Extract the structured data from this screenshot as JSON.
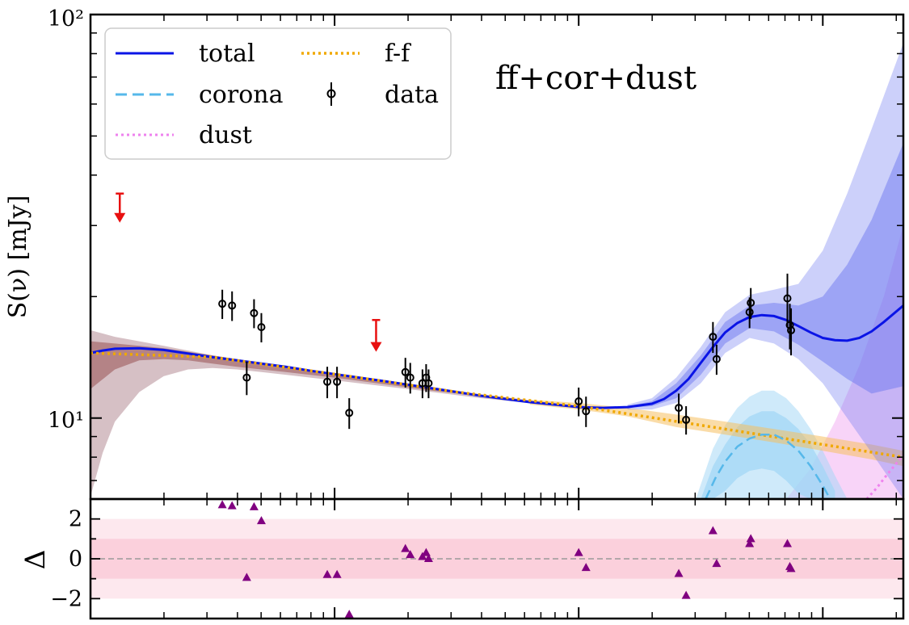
{
  "chart_data": [
    {
      "panel": "main",
      "type": "scatter",
      "title": "",
      "annotation": "ff+cor+dust",
      "xlabel": "",
      "ylabel": "S(ν) [mJy]",
      "yscale": "log",
      "xscale": "log",
      "xlim_log10": [
        0.0,
        3.33
      ],
      "ylim": [
        6.3,
        100
      ],
      "y_ticks": [
        {
          "value": 100,
          "label": "10²"
        },
        {
          "value": 10,
          "label": "10¹"
        }
      ],
      "legend": {
        "placement": "top-left",
        "entries": [
          {
            "label": "total",
            "style": "solid",
            "color": "#0a14e6"
          },
          {
            "label": "corona",
            "style": "dashed",
            "color": "#56b8ea"
          },
          {
            "label": "dust",
            "style": "dotted",
            "color": "#ee82ee"
          },
          {
            "label": "f-f",
            "style": "dotted",
            "color": "#f0a800"
          },
          {
            "label": "data",
            "style": "errorbar",
            "color": "#000000"
          }
        ]
      },
      "colors": {
        "total": "#0a14e6",
        "total_band": "#6e78f0",
        "corona": "#56b8ea",
        "corona_band": "#9fd6f5",
        "dust": "#ee82ee",
        "dust_band": "#f0a0f0",
        "ff": "#f0a800",
        "ff_band": "#f5c060",
        "low_band": "#8b3a3a",
        "upper_limit": "#e81010",
        "data": "#000000"
      },
      "data_points": [
        {
          "x": 0.54,
          "y": 19.2,
          "err": 1.6
        },
        {
          "x": 0.58,
          "y": 19.0,
          "err": 1.6
        },
        {
          "x": 0.64,
          "y": 12.6,
          "err": 1.2
        },
        {
          "x": 0.67,
          "y": 18.2,
          "err": 1.5
        },
        {
          "x": 0.7,
          "y": 16.8,
          "err": 1.4
        },
        {
          "x": 0.97,
          "y": 12.3,
          "err": 1.1
        },
        {
          "x": 1.01,
          "y": 12.3,
          "err": 1.1
        },
        {
          "x": 1.06,
          "y": 10.3,
          "err": 0.9
        },
        {
          "x": 1.29,
          "y": 13.0,
          "err": 1.1
        },
        {
          "x": 1.31,
          "y": 12.6,
          "err": 1.1
        },
        {
          "x": 1.36,
          "y": 12.2,
          "err": 1.0
        },
        {
          "x": 1.375,
          "y": 12.6,
          "err": 1.0
        },
        {
          "x": 1.385,
          "y": 12.2,
          "err": 1.0
        },
        {
          "x": 2.0,
          "y": 11.0,
          "err": 0.9
        },
        {
          "x": 2.03,
          "y": 10.4,
          "err": 0.9
        },
        {
          "x": 2.41,
          "y": 10.6,
          "err": 0.9
        },
        {
          "x": 2.44,
          "y": 9.9,
          "err": 0.8
        },
        {
          "x": 2.55,
          "y": 15.9,
          "err": 1.4
        },
        {
          "x": 2.565,
          "y": 14.0,
          "err": 1.2
        },
        {
          "x": 2.7,
          "y": 18.3,
          "err": 1.6
        },
        {
          "x": 2.705,
          "y": 19.3,
          "err": 1.7
        },
        {
          "x": 2.855,
          "y": 19.8,
          "err": 3.0
        },
        {
          "x": 2.865,
          "y": 17.0,
          "err": 2.2
        },
        {
          "x": 2.87,
          "y": 16.5,
          "err": 2.2
        }
      ],
      "upper_limits": [
        {
          "x": 0.12,
          "y": 36.0,
          "y_end": 30.5
        },
        {
          "x": 1.17,
          "y": 17.5,
          "y_end": 14.6
        }
      ],
      "curves": {
        "total": {
          "x": [
            0.0,
            0.05,
            0.1,
            0.2,
            0.3,
            0.4,
            0.5,
            0.6,
            0.7,
            0.8,
            0.9,
            1.0,
            1.1,
            1.2,
            1.3,
            1.4,
            1.5,
            1.6,
            1.7,
            1.8,
            1.9,
            2.0,
            2.1,
            2.2,
            2.3,
            2.35,
            2.4,
            2.45,
            2.5,
            2.55,
            2.6,
            2.65,
            2.7,
            2.75,
            2.8,
            2.85,
            2.9,
            2.95,
            3.0,
            3.05,
            3.1,
            3.15,
            3.2,
            3.25,
            3.33
          ],
          "y": [
            14.5,
            14.7,
            14.85,
            14.9,
            14.75,
            14.45,
            14.15,
            13.9,
            13.65,
            13.4,
            13.1,
            12.85,
            12.6,
            12.35,
            12.1,
            11.85,
            11.6,
            11.35,
            11.15,
            10.95,
            10.8,
            10.65,
            10.6,
            10.65,
            10.85,
            11.15,
            11.7,
            12.5,
            13.7,
            15.0,
            16.3,
            17.2,
            17.8,
            18.0,
            17.9,
            17.5,
            16.9,
            16.3,
            15.8,
            15.6,
            15.55,
            15.8,
            16.4,
            17.3,
            19.0
          ]
        },
        "total_band_outer": {
          "x": [
            2.2,
            2.3,
            2.4,
            2.5,
            2.6,
            2.7,
            2.8,
            2.9,
            3.0,
            3.1,
            3.2,
            3.33
          ],
          "upper": [
            10.8,
            11.2,
            12.6,
            15.0,
            18.3,
            20.2,
            20.8,
            21.5,
            26.0,
            36.0,
            52.0,
            85.0
          ],
          "lower": [
            10.5,
            10.5,
            10.9,
            12.2,
            14.5,
            15.8,
            15.3,
            14.0,
            12.2,
            10.0,
            8.2,
            6.3
          ]
        },
        "total_band_inner": {
          "x": [
            2.2,
            2.3,
            2.4,
            2.5,
            2.6,
            2.7,
            2.8,
            2.9,
            3.0,
            3.1,
            3.2,
            3.33
          ],
          "upper": [
            10.7,
            11.0,
            12.2,
            14.3,
            17.3,
            19.0,
            19.3,
            19.0,
            20.0,
            24.0,
            31.0,
            48.0
          ],
          "lower": [
            10.6,
            10.7,
            11.2,
            12.8,
            15.3,
            16.7,
            16.4,
            15.2,
            13.8,
            12.5,
            11.5,
            12.0
          ]
        },
        "ff": {
          "x": [
            0.0,
            0.5,
            1.0,
            1.5,
            2.0,
            2.5,
            3.0,
            3.33
          ],
          "y": [
            14.5,
            14.15,
            12.85,
            11.6,
            10.7,
            9.6,
            8.6,
            8.0
          ]
        },
        "ff_band": {
          "x": [
            1.8,
            2.0,
            2.2,
            2.4,
            2.6,
            2.8,
            3.0,
            3.2,
            3.33
          ],
          "upper": [
            11.1,
            10.9,
            10.6,
            10.2,
            9.8,
            9.4,
            9.0,
            8.6,
            8.3
          ],
          "lower": [
            10.8,
            10.5,
            10.1,
            9.5,
            9.1,
            8.7,
            8.3,
            7.9,
            7.6
          ]
        },
        "low_band": {
          "x": [
            0.0,
            0.05,
            0.1,
            0.2,
            0.3,
            0.4,
            0.5,
            0.6,
            0.7,
            0.8,
            0.9,
            1.0,
            1.2,
            1.4,
            1.6,
            1.8,
            2.0
          ],
          "upper": [
            16.5,
            16.2,
            15.9,
            15.5,
            15.1,
            14.7,
            14.3,
            14.0,
            13.7,
            13.4,
            13.1,
            12.85,
            12.35,
            11.85,
            11.4,
            11.0,
            10.7
          ],
          "lower": [
            6.4,
            8.2,
            9.8,
            11.6,
            12.7,
            13.2,
            13.3,
            13.2,
            13.0,
            12.8,
            12.6,
            12.4,
            12.0,
            11.6,
            11.2,
            10.9,
            10.6
          ]
        },
        "low_band_inner": {
          "x": [
            0.0,
            0.1,
            0.2,
            0.3,
            0.4,
            0.6,
            0.8,
            1.0,
            1.4,
            2.0
          ],
          "upper": [
            15.5,
            15.3,
            15.1,
            14.9,
            14.6,
            14.0,
            13.4,
            12.85,
            11.85,
            10.7
          ],
          "lower": [
            11.8,
            13.2,
            13.9,
            14.0,
            13.9,
            13.4,
            13.0,
            12.6,
            11.7,
            10.65
          ]
        },
        "corona": {
          "x": [
            2.52,
            2.56,
            2.6,
            2.65,
            2.7,
            2.75,
            2.8,
            2.85,
            2.9,
            2.95,
            3.0,
            3.03
          ],
          "y": [
            6.3,
            7.1,
            7.8,
            8.5,
            8.9,
            9.1,
            9.1,
            8.8,
            8.3,
            7.6,
            6.8,
            6.3
          ]
        },
        "corona_band_outer": {
          "x": [
            2.48,
            2.55,
            2.6,
            2.65,
            2.7,
            2.75,
            2.8,
            2.85,
            2.9,
            2.95,
            3.0,
            3.05,
            3.1
          ],
          "upper": [
            6.3,
            8.4,
            9.6,
            10.6,
            11.3,
            11.7,
            11.7,
            11.2,
            10.4,
            9.4,
            8.3,
            7.2,
            6.3
          ],
          "lower": [
            6.3,
            6.3,
            6.3,
            6.3,
            6.3,
            6.3,
            6.3,
            6.3,
            6.3,
            6.3,
            6.3,
            6.3,
            6.3
          ]
        },
        "corona_band_inner": {
          "x": [
            2.5,
            2.55,
            2.6,
            2.65,
            2.7,
            2.75,
            2.8,
            2.85,
            2.9,
            2.95,
            3.0,
            3.05
          ],
          "upper": [
            6.3,
            7.6,
            8.6,
            9.5,
            10.1,
            10.4,
            10.4,
            10.0,
            9.4,
            8.6,
            7.6,
            6.6
          ],
          "lower": [
            6.3,
            6.3,
            6.6,
            7.1,
            7.4,
            7.5,
            7.4,
            7.0,
            6.5,
            6.3,
            6.3,
            6.3
          ]
        },
        "dust": {
          "x": [
            3.18,
            3.22,
            3.26,
            3.3,
            3.33
          ],
          "y": [
            6.3,
            6.7,
            7.2,
            7.7,
            8.1
          ]
        },
        "dust_band": {
          "x": [
            2.85,
            2.95,
            3.05,
            3.15,
            3.25,
            3.33
          ],
          "upper": [
            6.3,
            7.5,
            9.8,
            13.5,
            20.0,
            30.0
          ],
          "lower": [
            6.3,
            6.3,
            6.3,
            6.3,
            6.3,
            6.3
          ]
        }
      }
    },
    {
      "panel": "residual",
      "type": "scatter",
      "ylabel": "Δ",
      "ylim": [
        -3.0,
        3.0
      ],
      "y_ticks": [
        {
          "value": 2,
          "label": "2"
        },
        {
          "value": 0,
          "label": "0"
        },
        {
          "value": -2,
          "label": "−2"
        }
      ],
      "bands": {
        "outer": [
          -2,
          2
        ],
        "inner": [
          -1,
          1
        ]
      },
      "colors": {
        "markers": "#800080",
        "band_outer": "#fde8ee",
        "band_inner": "#fbd0dc",
        "zero_line": "#999999"
      },
      "x": [
        0.54,
        0.58,
        0.64,
        0.67,
        0.7,
        0.97,
        1.01,
        1.06,
        1.29,
        1.31,
        1.36,
        1.375,
        1.385,
        2.0,
        2.03,
        2.41,
        2.44,
        2.55,
        2.565,
        2.7,
        2.705,
        2.855,
        2.865,
        2.87
      ],
      "y": [
        2.7,
        2.65,
        -0.95,
        2.6,
        1.9,
        -0.8,
        -0.8,
        -2.8,
        0.5,
        0.2,
        0.1,
        0.3,
        0.0,
        0.3,
        -0.45,
        -0.75,
        -1.85,
        1.4,
        -0.25,
        0.75,
        1.0,
        0.75,
        -0.4,
        -0.5
      ]
    }
  ]
}
